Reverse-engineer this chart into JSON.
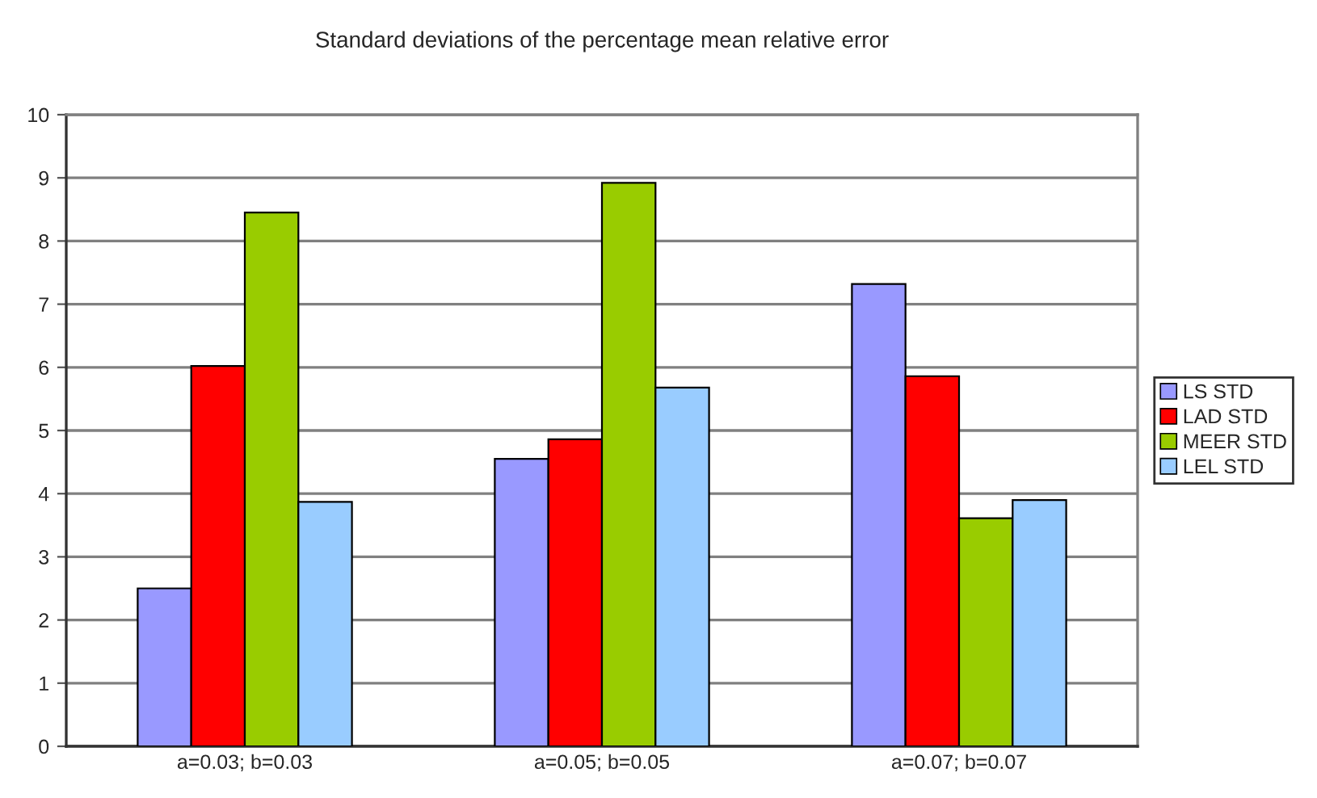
{
  "chart_data": {
    "type": "bar",
    "title": "Standard deviations of the percentage mean relative error",
    "categories": [
      "a=0.03; b=0.03",
      "a=0.05; b=0.05",
      "a=0.07; b=0.07"
    ],
    "series": [
      {
        "name": "LS STD",
        "color": "#9999ff",
        "values": [
          2.5,
          4.55,
          7.32
        ]
      },
      {
        "name": "LAD STD",
        "color": "#ff0000",
        "values": [
          6.02,
          4.86,
          5.86
        ]
      },
      {
        "name": "MEER STD",
        "color": "#99cc00",
        "values": [
          8.45,
          8.92,
          3.61
        ]
      },
      {
        "name": "LEL STD",
        "color": "#99ccff",
        "values": [
          3.87,
          5.68,
          3.9
        ]
      }
    ],
    "ylim": [
      0,
      10
    ],
    "yticks": [
      0,
      1,
      2,
      3,
      4,
      5,
      6,
      7,
      8,
      9,
      10
    ],
    "grid": "y",
    "legend": "right"
  }
}
